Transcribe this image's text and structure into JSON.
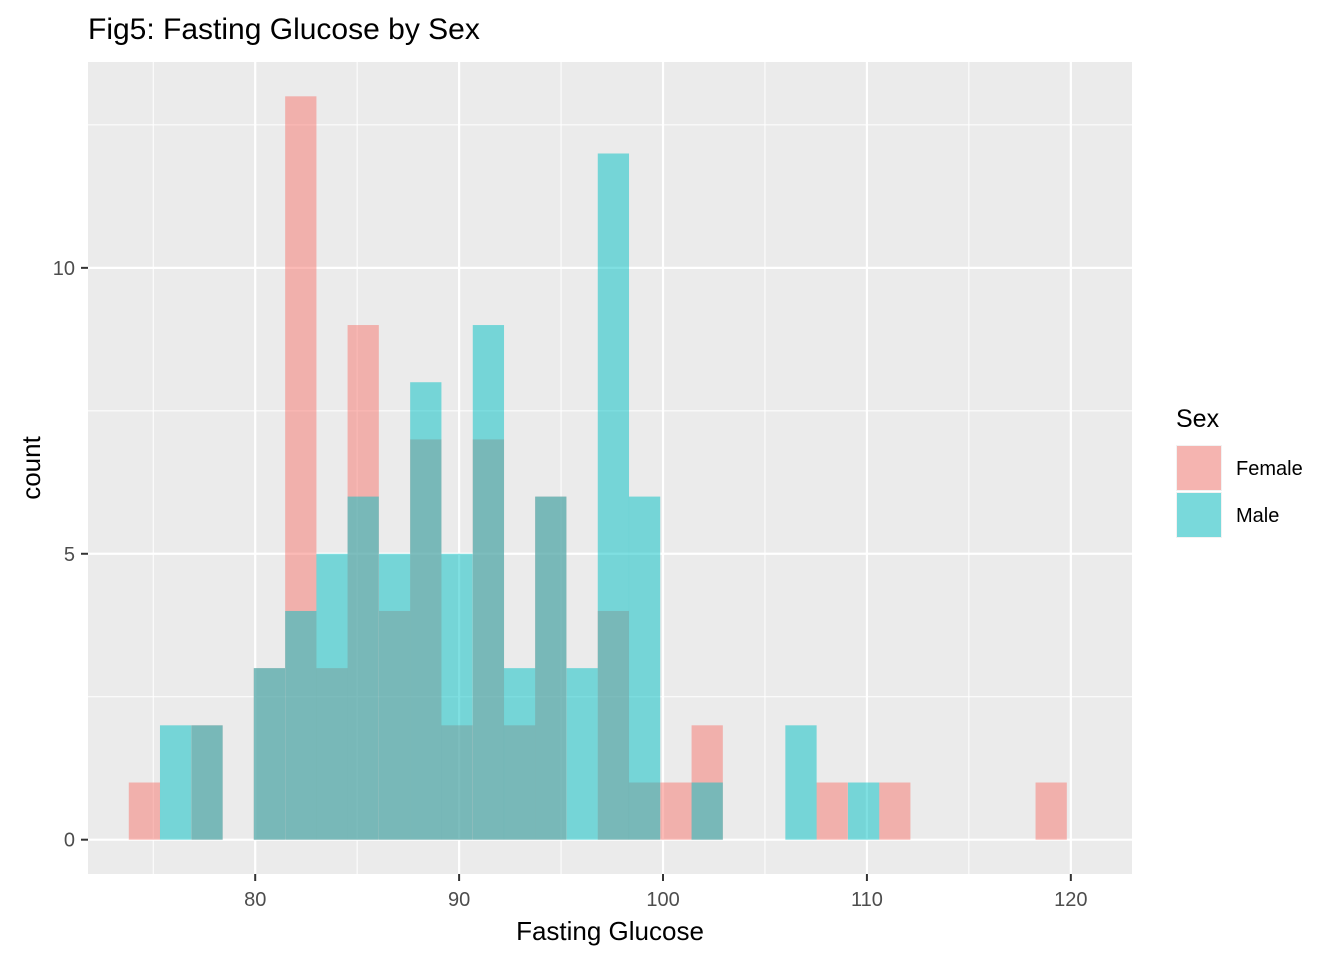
{
  "chart_data": {
    "type": "histogram",
    "title": "Fig5: Fasting Glucose by Sex",
    "xlabel": "Fasting Glucose",
    "ylabel": "count",
    "xlim": [
      71.8,
      123.0
    ],
    "ylim": [
      -0.6,
      13.6
    ],
    "x_ticks": [
      80,
      90,
      100,
      110,
      120
    ],
    "y_ticks": [
      0,
      5,
      10
    ],
    "x_tick_labels": [
      "80",
      "90",
      "100",
      "110",
      "120"
    ],
    "y_tick_labels": [
      "0",
      "5",
      "10"
    ],
    "bin_width": 1.533,
    "bin_starts": [
      73.8,
      75.33,
      76.87,
      78.4,
      79.93,
      81.47,
      83.0,
      84.53,
      86.07,
      87.6,
      89.13,
      90.67,
      92.2,
      93.73,
      95.27,
      96.8,
      98.33,
      99.87,
      101.4,
      102.93,
      104.47,
      106.0,
      107.53,
      109.07,
      110.6,
      112.13,
      113.67,
      115.2,
      116.73,
      118.27,
      119.8
    ],
    "grid": true,
    "legend_position": "right",
    "legend_title": "Sex",
    "series": [
      {
        "name": "Female",
        "color": "#F8766D",
        "counts": [
          1,
          0,
          2,
          0,
          3,
          13,
          3,
          9,
          4,
          7,
          2,
          7,
          2,
          6,
          0,
          4,
          1,
          1,
          2,
          0,
          0,
          0,
          1,
          0,
          1,
          0,
          0,
          0,
          0,
          1,
          0
        ]
      },
      {
        "name": "Male",
        "color": "#00BFC4",
        "counts": [
          0,
          2,
          2,
          0,
          3,
          4,
          5,
          6,
          5,
          8,
          5,
          9,
          3,
          6,
          3,
          12,
          6,
          0,
          1,
          0,
          0,
          2,
          0,
          1,
          0,
          0,
          0,
          0,
          0,
          0,
          0
        ]
      }
    ],
    "fill_alpha": 0.5
  },
  "colors": {
    "panel_background": "#EBEBEB",
    "grid_major": "#FFFFFF",
    "text": "#000000",
    "tick_text": "#4D4D4D"
  }
}
